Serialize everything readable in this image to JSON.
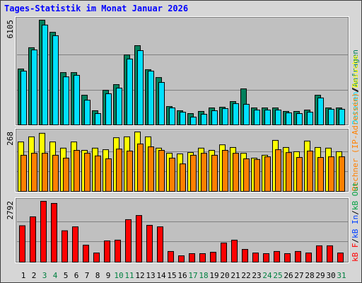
{
  "title": "Tages-Statistik im Monat Januar 2026",
  "chart_data": [
    {
      "type": "bar",
      "ylim": [
        0,
        6105
      ],
      "yticks": [
        6105
      ],
      "separator": "/",
      "series": [
        {
          "name": "Anfragen",
          "color": "#00805c",
          "values": [
            3260,
            4500,
            6105,
            5400,
            3050,
            3050,
            1730,
            825,
            2020,
            2350,
            4080,
            4620,
            3220,
            2760,
            1070,
            825,
            660,
            785,
            990,
            1030,
            1360,
            2100,
            990,
            990,
            990,
            785,
            785,
            865,
            1730,
            990,
            990
          ]
        },
        {
          "name": "Dateien",
          "color": "#00e0ff",
          "values": [
            3135,
            4370,
            5820,
            5200,
            2800,
            2890,
            1440,
            660,
            1815,
            2145,
            3840,
            4330,
            3135,
            2475,
            990,
            740,
            455,
            620,
            825,
            950,
            1240,
            1200,
            865,
            865,
            865,
            700,
            660,
            740,
            1570,
            910,
            910
          ]
        }
      ]
    },
    {
      "type": "bar",
      "ylim": [
        0,
        268
      ],
      "yticks": [
        268
      ],
      "separator": "/",
      "series": [
        {
          "name": "Besuche",
          "color": "#ffff00",
          "values": [
            223,
            246,
            262,
            223,
            195,
            223,
            185,
            195,
            188,
            242,
            246,
            268,
            246,
            195,
            172,
            169,
            175,
            195,
            185,
            210,
            198,
            172,
            150,
            163,
            230,
            198,
            179,
            227,
            198,
            195,
            179
          ]
        },
        {
          "name": "Rechner (IP-Adressen)",
          "color": "#ff8000",
          "values": [
            163,
            172,
            172,
            163,
            150,
            185,
            172,
            160,
            147,
            191,
            182,
            214,
            201,
            185,
            150,
            124,
            163,
            172,
            163,
            185,
            172,
            147,
            144,
            156,
            188,
            175,
            153,
            182,
            153,
            156,
            156
          ]
        }
      ]
    },
    {
      "type": "bar",
      "ylim": [
        0,
        2792
      ],
      "yticks": [
        2792
      ],
      "separator": "/",
      "categories": [
        "1",
        "2",
        "3",
        "4",
        "5",
        "6",
        "7",
        "8",
        "9",
        "10",
        "11",
        "12",
        "13",
        "14",
        "15",
        "16",
        "17",
        "18",
        "19",
        "20",
        "21",
        "22",
        "23",
        "24",
        "25",
        "26",
        "27",
        "28",
        "29",
        "30",
        "31"
      ],
      "category_colors": [
        "#000000",
        "#000000",
        "#008040",
        "#008040",
        "#000000",
        "#000000",
        "#000000",
        "#000000",
        "#000000",
        "#008040",
        "#008040",
        "#000000",
        "#000000",
        "#000000",
        "#000000",
        "#000000",
        "#008040",
        "#008040",
        "#000000",
        "#000000",
        "#000000",
        "#000000",
        "#000000",
        "#008040",
        "#008040",
        "#000000",
        "#000000",
        "#000000",
        "#000000",
        "#000000",
        "#008040"
      ],
      "series": [
        {
          "name": "kB F",
          "color": "#ff0000",
          "values": [
            1670,
            2080,
            2792,
            2695,
            1440,
            1620,
            780,
            420,
            975,
            1010,
            1950,
            2140,
            1690,
            1620,
            490,
            290,
            390,
            390,
            455,
            880,
            1010,
            585,
            420,
            390,
            490,
            390,
            490,
            420,
            750,
            750,
            420
          ]
        }
      ],
      "legend_extra": [
        {
          "name": "kB In",
          "color": "#0040ff"
        },
        {
          "name": "kB Out",
          "color": "#00a040"
        }
      ]
    }
  ]
}
